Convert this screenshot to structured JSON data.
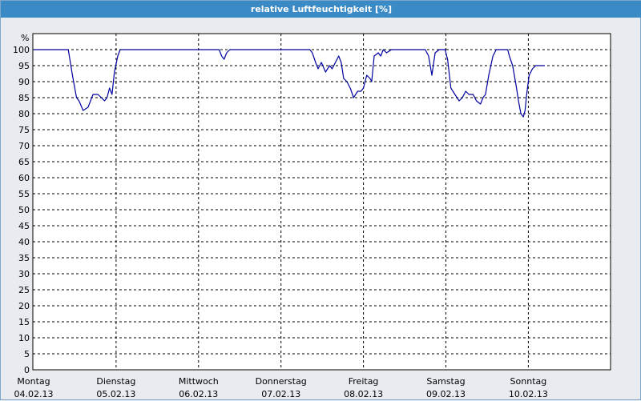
{
  "title": "relative Luftfeuchtigkeit [%]",
  "colors": {
    "title_bar": "#3a8ac6",
    "background": "#e8ecf1",
    "plot_background": "#ffffff",
    "series": "#0000a0",
    "grid": "#000000"
  },
  "chart_data": {
    "type": "line",
    "title": "relative Luftfeuchtigkeit [%]",
    "ylabel": "%",
    "xlabel": "",
    "ylim": [
      0,
      100
    ],
    "yticks": [
      0,
      5,
      10,
      15,
      20,
      25,
      30,
      35,
      40,
      45,
      50,
      55,
      60,
      65,
      70,
      75,
      80,
      85,
      90,
      95,
      100
    ],
    "xlim": [
      0,
      7
    ],
    "grid": true,
    "legend": "none",
    "x_unit": "days since Montag 04.02.13 00:00",
    "days": [
      {
        "weekday": "Montag",
        "date": "04.02.13"
      },
      {
        "weekday": "Dienstag",
        "date": "05.02.13"
      },
      {
        "weekday": "Mittwoch",
        "date": "06.02.13"
      },
      {
        "weekday": "Donnerstag",
        "date": "07.02.13"
      },
      {
        "weekday": "Freitag",
        "date": "08.02.13"
      },
      {
        "weekday": "Samstag",
        "date": "09.02.13"
      },
      {
        "weekday": "Sonntag",
        "date": "10.02.13"
      }
    ],
    "series": [
      {
        "values": [
          [
            0.0,
            100
          ],
          [
            0.42,
            100
          ],
          [
            0.47,
            92
          ],
          [
            0.52,
            85
          ],
          [
            0.55,
            84
          ],
          [
            0.6,
            81
          ],
          [
            0.66,
            82
          ],
          [
            0.72,
            86
          ],
          [
            0.78,
            86
          ],
          [
            0.82,
            85
          ],
          [
            0.86,
            84
          ],
          [
            0.89,
            85
          ],
          [
            0.92,
            88
          ],
          [
            0.95,
            86
          ],
          [
            0.98,
            93
          ],
          [
            1.02,
            98
          ],
          [
            1.05,
            100
          ],
          [
            1.12,
            100
          ],
          [
            2.25,
            100
          ],
          [
            2.28,
            98
          ],
          [
            2.31,
            97
          ],
          [
            2.34,
            99
          ],
          [
            2.38,
            100
          ],
          [
            3.35,
            100
          ],
          [
            3.38,
            99
          ],
          [
            3.42,
            96
          ],
          [
            3.45,
            94
          ],
          [
            3.49,
            96
          ],
          [
            3.54,
            93
          ],
          [
            3.59,
            95
          ],
          [
            3.62,
            94
          ],
          [
            3.66,
            96
          ],
          [
            3.7,
            98
          ],
          [
            3.73,
            96
          ],
          [
            3.76,
            91
          ],
          [
            3.8,
            90
          ],
          [
            3.84,
            88
          ],
          [
            3.88,
            85
          ],
          [
            3.93,
            87
          ],
          [
            3.97,
            87
          ],
          [
            4.0,
            88
          ],
          [
            4.04,
            92
          ],
          [
            4.08,
            91
          ],
          [
            4.1,
            90
          ],
          [
            4.13,
            98
          ],
          [
            4.18,
            99
          ],
          [
            4.21,
            98
          ],
          [
            4.24,
            100
          ],
          [
            4.28,
            99
          ],
          [
            4.34,
            100
          ],
          [
            4.75,
            100
          ],
          [
            4.79,
            98
          ],
          [
            4.83,
            92
          ],
          [
            4.87,
            99
          ],
          [
            4.92,
            100
          ],
          [
            4.99,
            100
          ],
          [
            5.02,
            97
          ],
          [
            5.06,
            88
          ],
          [
            5.11,
            86
          ],
          [
            5.16,
            84
          ],
          [
            5.2,
            85
          ],
          [
            5.24,
            87
          ],
          [
            5.28,
            86
          ],
          [
            5.33,
            86
          ],
          [
            5.37,
            84
          ],
          [
            5.42,
            83
          ],
          [
            5.45,
            85
          ],
          [
            5.48,
            86
          ],
          [
            5.52,
            92
          ],
          [
            5.57,
            98
          ],
          [
            5.61,
            100
          ],
          [
            5.75,
            100
          ],
          [
            5.77,
            98
          ],
          [
            5.81,
            95
          ],
          [
            5.85,
            89
          ],
          [
            5.88,
            84
          ],
          [
            5.91,
            80
          ],
          [
            5.94,
            79
          ],
          [
            5.96,
            81
          ],
          [
            5.98,
            86
          ],
          [
            6.01,
            92
          ],
          [
            6.05,
            94
          ],
          [
            6.09,
            95
          ],
          [
            6.13,
            95
          ],
          [
            6.17,
            95
          ],
          [
            6.2,
            95
          ]
        ]
      }
    ]
  }
}
